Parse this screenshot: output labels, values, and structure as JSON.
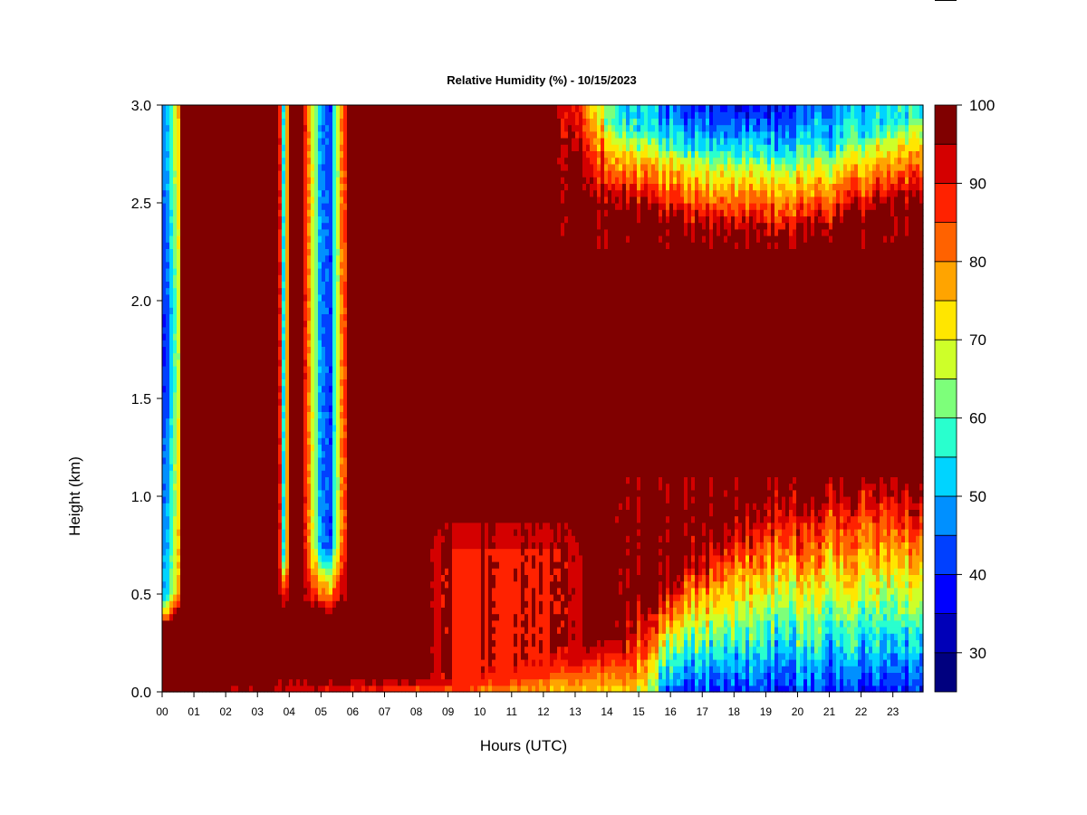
{
  "chart_data": {
    "type": "heatmap",
    "title": "Relative Humidity (%) - 10/15/2023",
    "xlabel": "Hours (UTC)",
    "ylabel": "Height (km)",
    "xlim": [
      0,
      23.95
    ],
    "ylim": [
      0.0,
      3.0
    ],
    "x_ticks": [
      "00",
      "01",
      "02",
      "03",
      "04",
      "05",
      "06",
      "07",
      "08",
      "09",
      "10",
      "11",
      "12",
      "13",
      "14",
      "15",
      "16",
      "17",
      "18",
      "19",
      "20",
      "21",
      "22",
      "23"
    ],
    "y_ticks": [
      "0.0",
      "0.5",
      "1.0",
      "1.5",
      "2.0",
      "2.5",
      "3.0"
    ],
    "colorbar": {
      "min": 25,
      "max": 100,
      "ticks": [
        "30",
        "40",
        "50",
        "60",
        "70",
        "80",
        "90",
        "100"
      ],
      "levels": [
        {
          "from": 25,
          "to": 30,
          "color": "#00007f"
        },
        {
          "from": 30,
          "to": 35,
          "color": "#0000b8"
        },
        {
          "from": 35,
          "to": 40,
          "color": "#0000ff"
        },
        {
          "from": 40,
          "to": 45,
          "color": "#0040ff"
        },
        {
          "from": 45,
          "to": 50,
          "color": "#0090ff"
        },
        {
          "from": 50,
          "to": 55,
          "color": "#00d4ff"
        },
        {
          "from": 55,
          "to": 60,
          "color": "#29ffce"
        },
        {
          "from": 60,
          "to": 65,
          "color": "#7dff7a"
        },
        {
          "from": 65,
          "to": 70,
          "color": "#ceff29"
        },
        {
          "from": 70,
          "to": 75,
          "color": "#ffe600"
        },
        {
          "from": 75,
          "to": 80,
          "color": "#ffa400"
        },
        {
          "from": 80,
          "to": 85,
          "color": "#ff6200"
        },
        {
          "from": 85,
          "to": 90,
          "color": "#ff2200"
        },
        {
          "from": 90,
          "to": 95,
          "color": "#d40000"
        },
        {
          "from": 95,
          "to": 100,
          "color": "#800000"
        }
      ]
    },
    "features": [
      {
        "hours": [
          0.0,
          0.6
        ],
        "heights": [
          0.4,
          3.0
        ],
        "min_rh": 40
      },
      {
        "hours": [
          3.7,
          4.0
        ],
        "heights": [
          0.45,
          3.0
        ],
        "min_rh": 45
      },
      {
        "hours": [
          4.5,
          5.9
        ],
        "heights": [
          0.4,
          3.0
        ],
        "min_rh": 48
      },
      {
        "hours": [
          12.5,
          23.95
        ],
        "heights": [
          2.4,
          3.0
        ],
        "min_rh": 35
      },
      {
        "hours": [
          8.0,
          13.5
        ],
        "heights": [
          0.0,
          1.0
        ],
        "min_rh": 70
      },
      {
        "hours": [
          15.5,
          23.95
        ],
        "heights": [
          0.0,
          1.05
        ],
        "min_rh": 40
      }
    ]
  }
}
